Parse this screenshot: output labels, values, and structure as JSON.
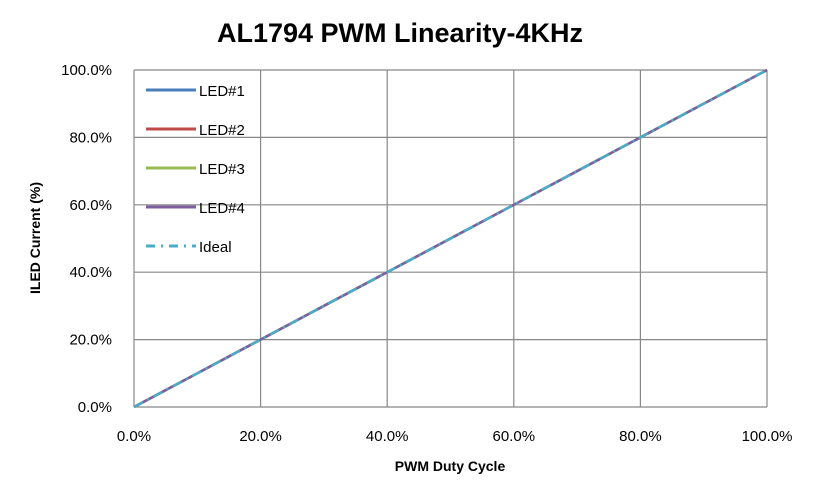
{
  "chart_data": {
    "type": "line",
    "title": "AL1794 PWM Linearity-4KHz",
    "xlabel": "PWM Duty Cycle",
    "ylabel": "ILED Current (%)",
    "xlim": [
      0,
      100
    ],
    "ylim": [
      0,
      100
    ],
    "grid": true,
    "legend_position": "top-left",
    "x_ticks": [
      "0.0%",
      "20.0%",
      "40.0%",
      "60.0%",
      "80.0%",
      "100.0%"
    ],
    "y_ticks": [
      "0.0%",
      "20.0%",
      "40.0%",
      "60.0%",
      "80.0%",
      "100.0%"
    ],
    "x": [
      0,
      10,
      20,
      30,
      40,
      50,
      60,
      70,
      80,
      90,
      100
    ],
    "series": [
      {
        "name": "LED#1",
        "color": "#4a7ebb",
        "dash": "solid",
        "values": [
          0,
          10,
          20,
          30,
          40,
          50,
          60,
          70,
          80,
          90,
          100
        ]
      },
      {
        "name": "LED#2",
        "color": "#be4b48",
        "dash": "solid",
        "values": [
          0,
          10,
          20,
          30,
          40,
          50,
          60,
          70,
          80,
          90,
          100
        ]
      },
      {
        "name": "LED#3",
        "color": "#98b954",
        "dash": "solid",
        "values": [
          0,
          10,
          20,
          30,
          40,
          50,
          60,
          70,
          80,
          90,
          100
        ]
      },
      {
        "name": "LED#4",
        "color": "#7d60a0",
        "dash": "solid",
        "values": [
          0,
          10,
          20,
          30,
          40,
          50,
          60,
          70,
          80,
          90,
          100
        ]
      },
      {
        "name": "Ideal",
        "color": "#4bacc6",
        "dash": "dashdot",
        "values": [
          0,
          10,
          20,
          30,
          40,
          50,
          60,
          70,
          80,
          90,
          100
        ]
      }
    ]
  }
}
